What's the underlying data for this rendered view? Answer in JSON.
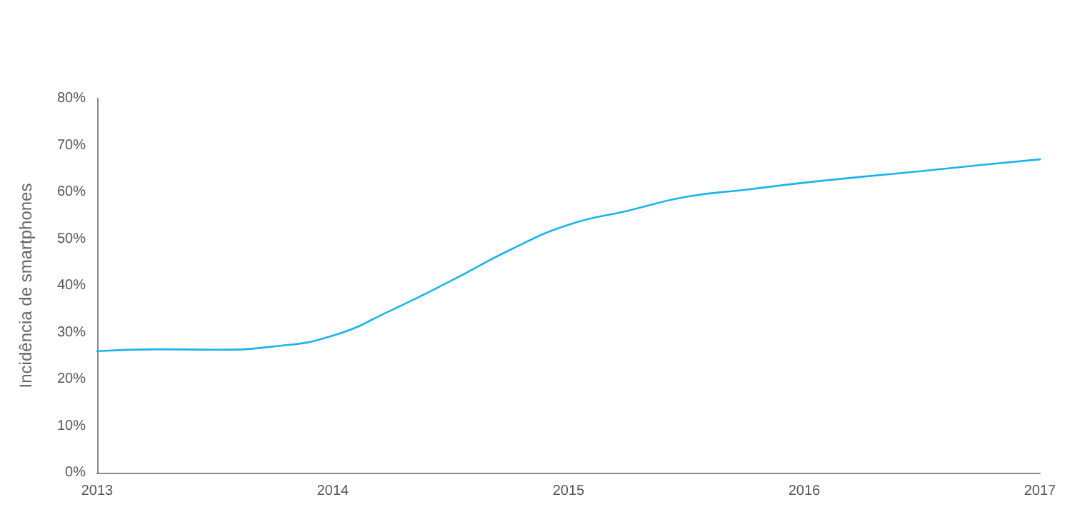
{
  "chart_data": {
    "type": "line",
    "ylabel": "Incidência de smartphones",
    "x": [
      2013,
      2013.25,
      2013.5,
      2013.75,
      2014,
      2014.25,
      2014.5,
      2014.75,
      2015,
      2015.25,
      2015.5,
      2015.75,
      2016,
      2016.25,
      2016.5,
      2016.75,
      2017
    ],
    "series": [
      {
        "color": "#1ab4ea",
        "values": [
          26,
          26.4,
          26.3,
          27,
          29.3,
          34.8,
          41,
          47.6,
          53,
          56,
          59,
          60.5,
          62,
          63.3,
          64.5,
          65.8,
          67
        ]
      }
    ],
    "xlim": [
      2013,
      2017
    ],
    "xticks": [
      2013,
      2014,
      2015,
      2016,
      2017
    ],
    "ylim": [
      0,
      80
    ],
    "yticks": [
      {
        "value": 0,
        "label": "0%"
      },
      {
        "value": 10,
        "label": "10%"
      },
      {
        "value": 20,
        "label": "20%"
      },
      {
        "value": 30,
        "label": "30%"
      },
      {
        "value": 40,
        "label": "40%"
      },
      {
        "value": 50,
        "label": "50%"
      },
      {
        "value": 60,
        "label": "60%"
      },
      {
        "value": 70,
        "label": "70%"
      },
      {
        "value": 80,
        "label": "80%"
      }
    ],
    "grid": false,
    "marker": "none",
    "line_style": "solid"
  }
}
